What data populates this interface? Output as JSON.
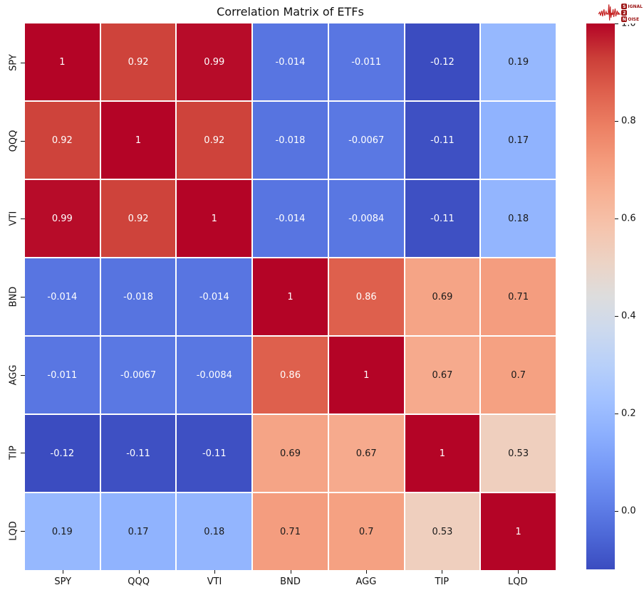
{
  "logo": {
    "line1_box": "S",
    "line1_rest": "IGNAL",
    "line2_box": "2",
    "line3_box": "N",
    "line3_rest": "OISE",
    "accent_color": "#9c1414",
    "waveform_color": "#c42020"
  },
  "chart_data": {
    "type": "heatmap",
    "title": "Correlation Matrix of ETFs",
    "categories": [
      "SPY",
      "QQQ",
      "VTI",
      "BND",
      "AGG",
      "TIP",
      "LQD"
    ],
    "values": [
      [
        1,
        0.92,
        0.99,
        -0.014,
        -0.011,
        -0.12,
        0.19
      ],
      [
        0.92,
        1,
        0.92,
        -0.018,
        -0.0067,
        -0.11,
        0.17
      ],
      [
        0.99,
        0.92,
        1,
        -0.014,
        -0.0084,
        -0.11,
        0.18
      ],
      [
        -0.014,
        -0.018,
        -0.014,
        1,
        0.86,
        0.69,
        0.71
      ],
      [
        -0.011,
        -0.0067,
        -0.0084,
        0.86,
        1,
        0.67,
        0.7
      ],
      [
        -0.12,
        -0.11,
        -0.11,
        0.69,
        0.67,
        1,
        0.53
      ],
      [
        0.19,
        0.17,
        0.18,
        0.71,
        0.7,
        0.53,
        1
      ]
    ],
    "annotations": [
      [
        "1",
        "0.92",
        "0.99",
        "-0.014",
        "-0.011",
        "-0.12",
        "0.19"
      ],
      [
        "0.92",
        "1",
        "0.92",
        "-0.018",
        "-0.0067",
        "-0.11",
        "0.17"
      ],
      [
        "0.99",
        "0.92",
        "1",
        "-0.014",
        "-0.0084",
        "-0.11",
        "0.18"
      ],
      [
        "-0.014",
        "-0.018",
        "-0.014",
        "1",
        "0.86",
        "0.69",
        "0.71"
      ],
      [
        "-0.011",
        "-0.0067",
        "-0.0084",
        "0.86",
        "1",
        "0.67",
        "0.7"
      ],
      [
        "-0.12",
        "-0.11",
        "-0.11",
        "0.69",
        "0.67",
        "1",
        "0.53"
      ],
      [
        "0.19",
        "0.17",
        "0.18",
        "0.71",
        "0.7",
        "0.53",
        "1"
      ]
    ],
    "colormap": "coolwarm",
    "vmin": -0.12,
    "vmax": 1.0,
    "colorbar_position": "right",
    "colorbar_ticks": [
      "1.0",
      "0.8",
      "0.6",
      "0.4",
      "0.2",
      "0.0"
    ],
    "colorbar_tick_values": [
      1.0,
      0.8,
      0.6,
      0.4,
      0.2,
      0.0
    ],
    "grid_line_color": "#ffffff",
    "annotation_text_light": "#ffffff",
    "annotation_text_dark": "#1a1a1a"
  }
}
